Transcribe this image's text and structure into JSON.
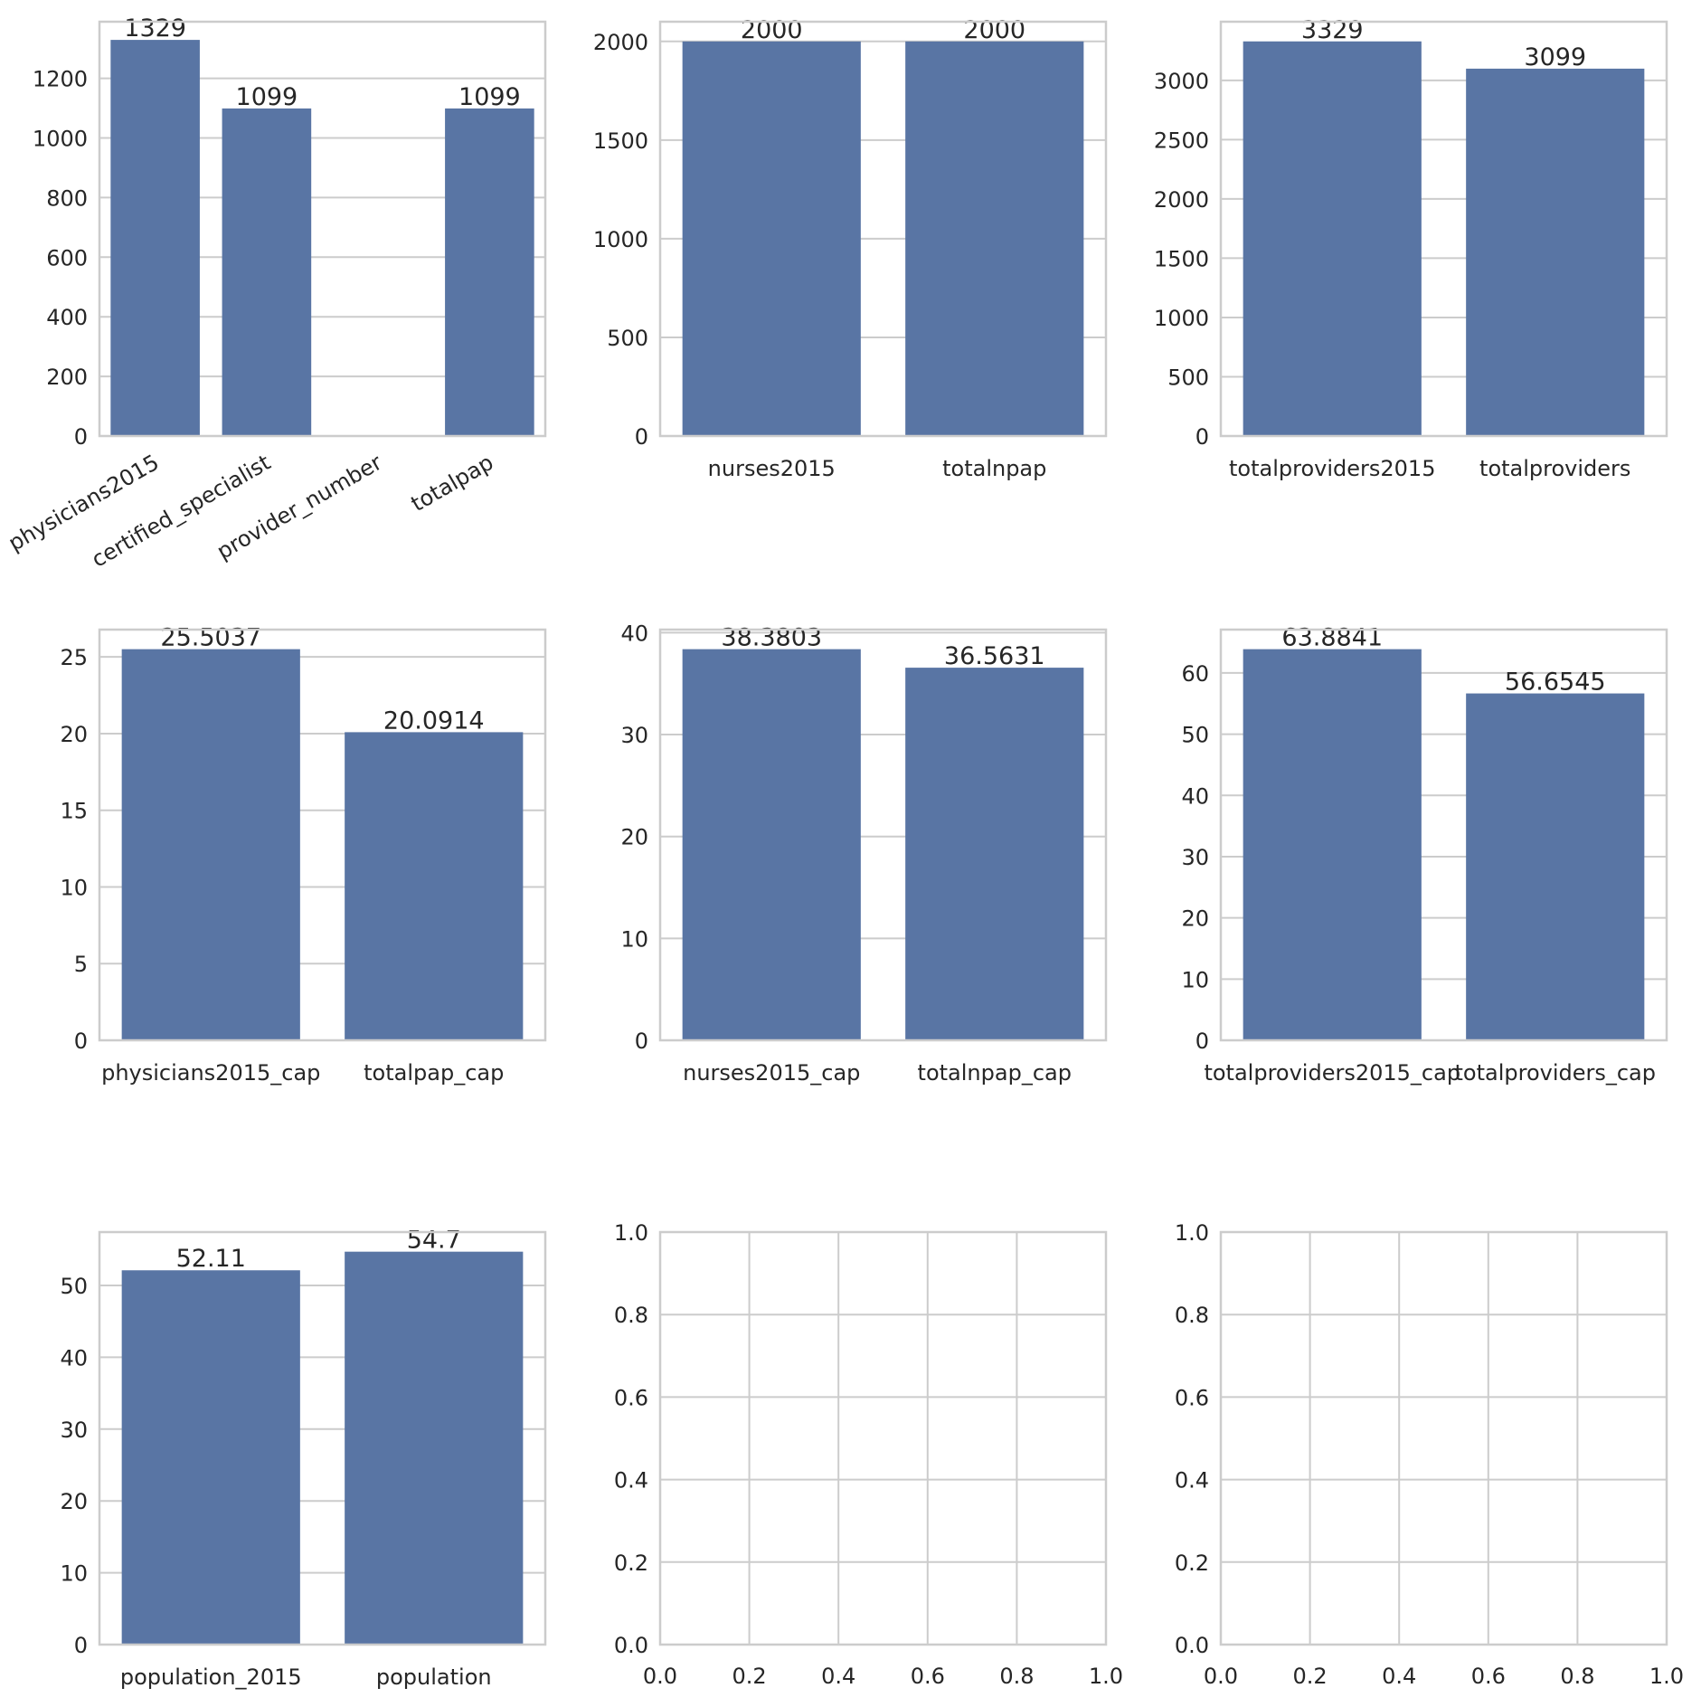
{
  "figure": {
    "bar_color": "#5975a4",
    "grid_color": "#cccccc",
    "frame_color": "#cccccc",
    "text_color": "#262626"
  },
  "chart_data": [
    {
      "type": "bar",
      "categories": [
        "physicians2015",
        "certified_specialist",
        "provider_number",
        "totalpap"
      ],
      "values": [
        1329,
        1099,
        null,
        1099
      ],
      "labels": [
        "1329",
        "1099",
        null,
        "1099"
      ],
      "ylim": [
        0,
        1390
      ],
      "yticks": [
        0,
        200,
        400,
        600,
        800,
        1000,
        1200
      ],
      "ytick_labels": [
        "0",
        "200",
        "400",
        "600",
        "800",
        "1000",
        "1200"
      ],
      "xtick_rotation": 30,
      "grid": "y"
    },
    {
      "type": "bar",
      "categories": [
        "nurses2015",
        "totalnpap"
      ],
      "values": [
        2000,
        2000
      ],
      "labels": [
        "2000",
        "2000"
      ],
      "ylim": [
        0,
        2100
      ],
      "yticks": [
        0,
        500,
        1000,
        1500,
        2000
      ],
      "ytick_labels": [
        "0",
        "500",
        "1000",
        "1500",
        "2000"
      ],
      "grid": "y"
    },
    {
      "type": "bar",
      "categories": [
        "totalproviders2015",
        "totalproviders"
      ],
      "values": [
        3329,
        3099
      ],
      "labels": [
        "3329",
        "3099"
      ],
      "ylim": [
        0,
        3495
      ],
      "yticks": [
        0,
        500,
        1000,
        1500,
        2000,
        2500,
        3000
      ],
      "ytick_labels": [
        "0",
        "500",
        "1000",
        "1500",
        "2000",
        "2500",
        "3000"
      ],
      "grid": "y"
    },
    {
      "type": "bar",
      "categories": [
        "physicians2015_cap",
        "totalpap_cap"
      ],
      "values": [
        25.5037,
        20.0914
      ],
      "labels": [
        "25.5037",
        "20.0914"
      ],
      "ylim": [
        0,
        26.78
      ],
      "yticks": [
        0,
        5,
        10,
        15,
        20,
        25
      ],
      "ytick_labels": [
        "0",
        "5",
        "10",
        "15",
        "20",
        "25"
      ],
      "grid": "y"
    },
    {
      "type": "bar",
      "categories": [
        "nurses2015_cap",
        "totalnpap_cap"
      ],
      "values": [
        38.3803,
        36.5631
      ],
      "labels": [
        "38.3803",
        "36.5631"
      ],
      "ylim": [
        0,
        40.3
      ],
      "yticks": [
        0,
        10,
        20,
        30,
        40
      ],
      "ytick_labels": [
        "0",
        "10",
        "20",
        "30",
        "40"
      ],
      "grid": "y"
    },
    {
      "type": "bar",
      "categories": [
        "totalproviders2015_cap",
        "totalproviders_cap"
      ],
      "values": [
        63.8841,
        56.6545
      ],
      "labels": [
        "63.8841",
        "56.6545"
      ],
      "ylim": [
        0,
        67.08
      ],
      "yticks": [
        0,
        10,
        20,
        30,
        40,
        50,
        60
      ],
      "ytick_labels": [
        "0",
        "10",
        "20",
        "30",
        "40",
        "50",
        "60"
      ],
      "grid": "y"
    },
    {
      "type": "bar",
      "categories": [
        "population_2015",
        "population"
      ],
      "values": [
        52.11,
        54.7
      ],
      "labels": [
        "52.11",
        "54.7"
      ],
      "ylim": [
        0,
        57.43
      ],
      "yticks": [
        0,
        10,
        20,
        30,
        40,
        50
      ],
      "ytick_labels": [
        "0",
        "10",
        "20",
        "30",
        "40",
        "50"
      ],
      "grid": "y"
    },
    {
      "type": "empty",
      "xlim": [
        0,
        1
      ],
      "ylim": [
        0,
        1
      ],
      "xticks": [
        0,
        0.2,
        0.4,
        0.6,
        0.8,
        1.0
      ],
      "xtick_labels": [
        "0.0",
        "0.2",
        "0.4",
        "0.6",
        "0.8",
        "1.0"
      ],
      "yticks": [
        0,
        0.2,
        0.4,
        0.6,
        0.8,
        1.0
      ],
      "ytick_labels": [
        "0.0",
        "0.2",
        "0.4",
        "0.6",
        "0.8",
        "1.0"
      ],
      "grid": "both"
    },
    {
      "type": "empty",
      "xlim": [
        0,
        1
      ],
      "ylim": [
        0,
        1
      ],
      "xticks": [
        0,
        0.2,
        0.4,
        0.6,
        0.8,
        1.0
      ],
      "xtick_labels": [
        "0.0",
        "0.2",
        "0.4",
        "0.6",
        "0.8",
        "1.0"
      ],
      "yticks": [
        0,
        0.2,
        0.4,
        0.6,
        0.8,
        1.0
      ],
      "ytick_labels": [
        "0.0",
        "0.2",
        "0.4",
        "0.6",
        "0.8",
        "1.0"
      ],
      "grid": "both"
    }
  ]
}
